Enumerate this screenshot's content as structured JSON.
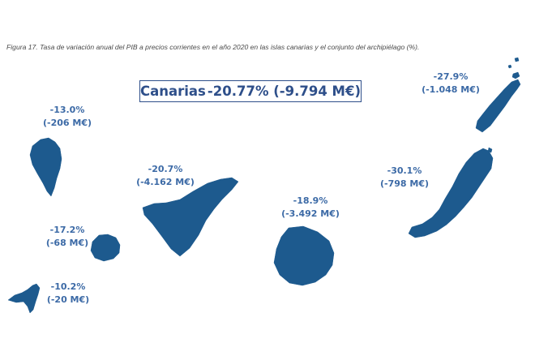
{
  "caption": "Figura 17. Tasa de variación anual del PIB a precios corrientes en el año 2020 en las islas canarias y el conjunto del archipiélago (%).",
  "total": {
    "name": "Canarias",
    "value": "-20.77% (-9.794 M€)"
  },
  "colors": {
    "island_fill": "#1d5a8e",
    "label_text": "#3c6aa6",
    "box_border": "#2e4f8a"
  },
  "islands": [
    {
      "id": "la-palma",
      "rate": "-13.0%",
      "amount": "(-206 M€)"
    },
    {
      "id": "tenerife",
      "rate": "-20.7%",
      "amount": "(-4.162 M€)"
    },
    {
      "id": "la-gomera",
      "rate": "-17.2%",
      "amount": "(-68 M€)"
    },
    {
      "id": "el-hierro",
      "rate": "-10.2%",
      "amount": "(-20 M€)"
    },
    {
      "id": "gran-canaria",
      "rate": "-18.9%",
      "amount": "(-3.492 M€)"
    },
    {
      "id": "fuerteventura",
      "rate": "-30.1%",
      "amount": "(-798 M€)"
    },
    {
      "id": "lanzarote",
      "rate": "-27.9%",
      "amount": "(-1.048 M€)"
    }
  ]
}
